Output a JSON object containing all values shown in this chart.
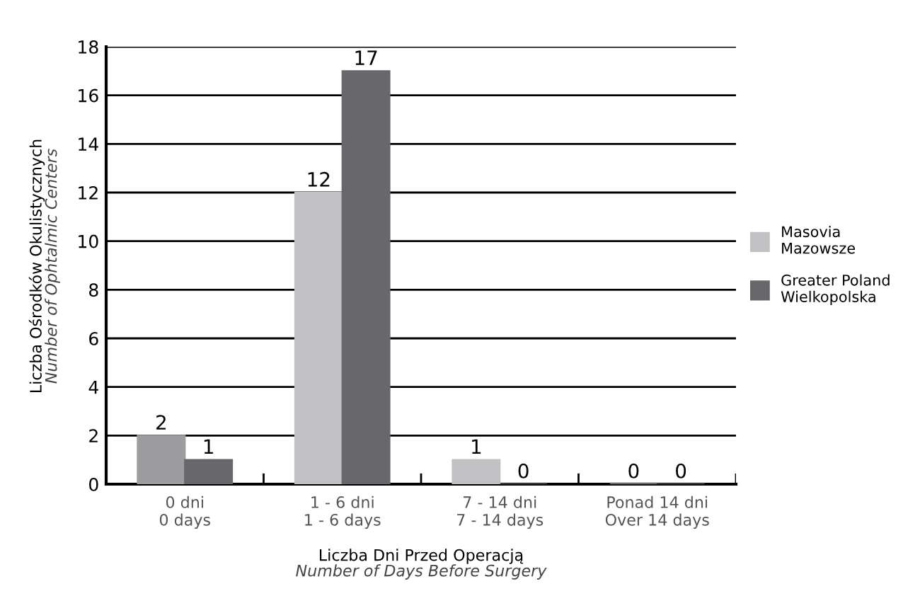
{
  "chart_data": {
    "type": "bar",
    "categories": [
      "0 dni\n0 days",
      "1 - 6 dni\n1 - 6 days",
      "7 - 14 dni\n7 - 14 days",
      "Ponad 14 dni\nOver 14 days"
    ],
    "series": [
      {
        "name": "Masovia\nMazowsze",
        "color": "#c1c1c3",
        "colors": [
          "#9d9d9f",
          "#c1c1c3",
          "#c1c1c3",
          "#c1c1c3"
        ],
        "values": [
          2,
          12,
          1,
          0
        ]
      },
      {
        "name": "Greater Poland\nWielkopolska",
        "color": "#68676b",
        "values": [
          1,
          17,
          0,
          0
        ]
      }
    ],
    "xlabel": "Liczba Dni Przed Operacją\nNumber of Days Before Surgery",
    "ylabel": "Liczba Ośrodków Okulistycznych\nNumber of Ophtalmic Centers",
    "ylim": [
      0,
      18
    ],
    "yticks": [
      0,
      2,
      4,
      6,
      8,
      10,
      12,
      14,
      16,
      18
    ],
    "grid": "y",
    "legend": "right",
    "data_labels": true
  }
}
